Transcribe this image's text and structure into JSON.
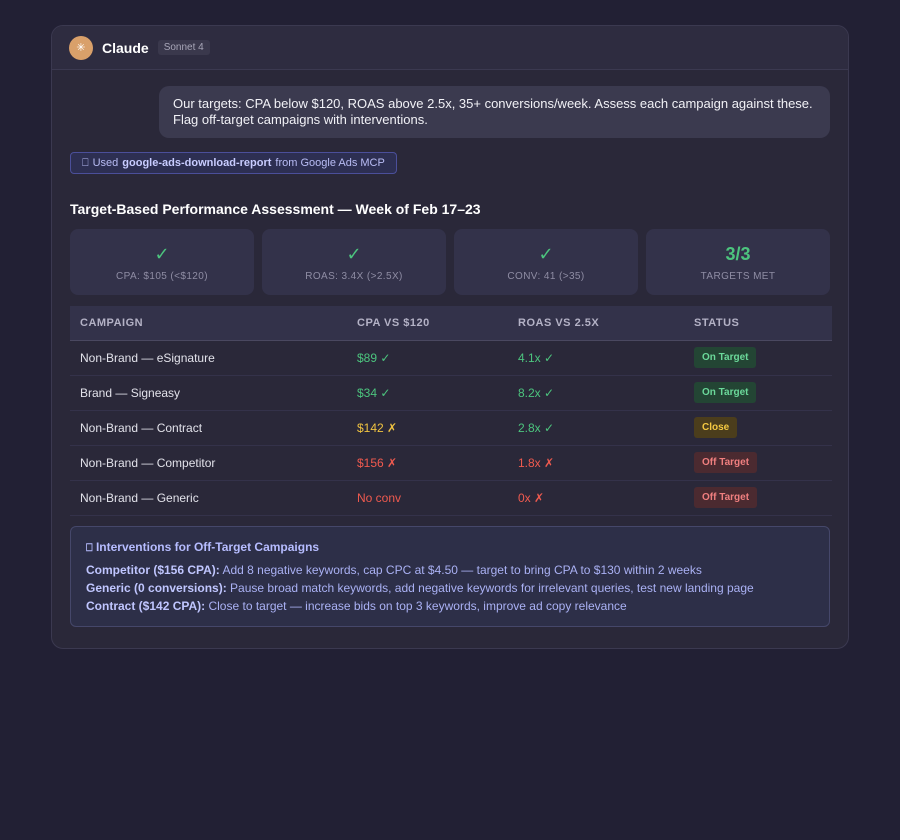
{
  "header": {
    "app_name": "Claude",
    "model_badge": "Sonnet 4",
    "avatar_glyph": "✳"
  },
  "user_message": "Our targets: CPA below $120, ROAS above 2.5x, 35+ conversions/week. Assess each campaign against these. Flag off-target campaigns with interventions.",
  "tool_chip": {
    "icon": "⎕",
    "prefix": "Used",
    "tool_name": "google-ads-download-report",
    "suffix": "from Google Ads MCP"
  },
  "section_title": "Target-Based Performance Assessment — Week of Feb 17–23",
  "stats": [
    {
      "value": "✓",
      "label": "CPA: $105 (<$120)"
    },
    {
      "value": "✓",
      "label": "ROAS: 3.4X (>2.5X)"
    },
    {
      "value": "✓",
      "label": "CONV: 41 (>35)"
    },
    {
      "value": "3/3",
      "label": "TARGETS MET"
    }
  ],
  "table": {
    "headers": [
      "CAMPAIGN",
      "CPA VS $120",
      "ROAS VS 2.5X",
      "STATUS"
    ],
    "rows": [
      {
        "campaign": "Non-Brand — eSignature",
        "cpa": "$89 ✓",
        "roas": "4.1x ✓",
        "status": "On Target"
      },
      {
        "campaign": "Brand — Signeasy",
        "cpa": "$34 ✓",
        "roas": "8.2x ✓",
        "status": "On Target"
      },
      {
        "campaign": "Non-Brand — Contract",
        "cpa": "$142 ✗",
        "roas": "2.8x ✓",
        "status": "Close"
      },
      {
        "campaign": "Non-Brand — Competitor",
        "cpa": "$156 ✗",
        "roas": "1.8x ✗",
        "status": "Off Target"
      },
      {
        "campaign": "Non-Brand — Generic",
        "cpa": "No conv",
        "roas": "0x ✗",
        "status": "Off Target"
      }
    ]
  },
  "interventions": {
    "icon": "⎕",
    "title": "Interventions for Off-Target Campaigns",
    "items": [
      {
        "label": "Competitor ($156 CPA):",
        "text": " Add 8 negative keywords, cap CPC at $4.50 — target to bring CPA to $130 within 2 weeks"
      },
      {
        "label": "Generic (0 conversions):",
        "text": " Pause broad match keywords, add negative keywords for irrelevant queries, test new landing page"
      },
      {
        "label": "Contract ($142 CPA):",
        "text": " Close to target — increase bids on top 3 keywords, improve ad copy relevance"
      }
    ]
  }
}
